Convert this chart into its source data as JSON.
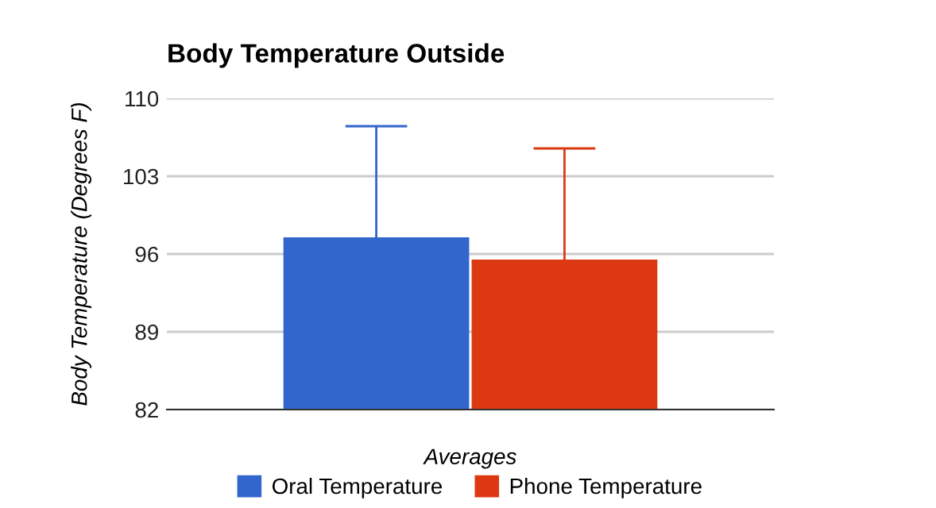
{
  "chart_data": {
    "type": "bar",
    "title": "Body Temperature Outside",
    "xlabel": "Averages",
    "ylabel": "Body Temperature (Degrees F)",
    "categories": [
      null
    ],
    "series": [
      {
        "name": "Oral Temperature",
        "color": "#3366cc",
        "values": [
          97.5
        ],
        "errors": [
          10
        ]
      },
      {
        "name": "Phone Temperature",
        "color": "#dc3912",
        "values": [
          95.5
        ],
        "errors": [
          10
        ]
      }
    ],
    "ylim": [
      82,
      110
    ],
    "yticks": [
      82,
      89,
      96,
      103,
      110
    ],
    "grid": "y",
    "legend": "bottom"
  }
}
